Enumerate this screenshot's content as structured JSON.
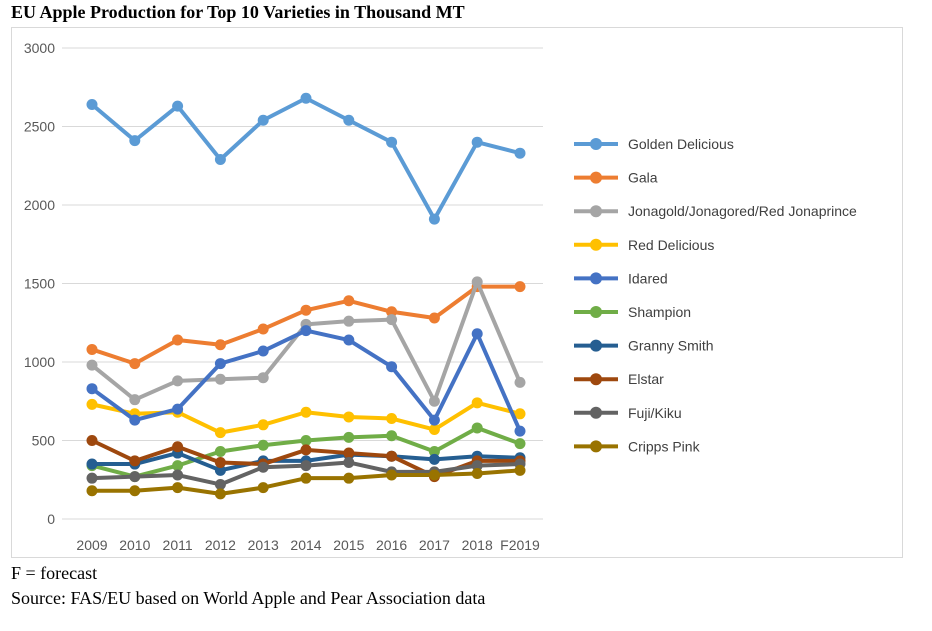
{
  "title": "EU Apple Production for Top 10 Varieties in Thousand MT",
  "notes": {
    "forecast": "F = forecast",
    "source": "Source: FAS/EU based on World Apple and Pear Association data"
  },
  "chart_data": {
    "type": "line",
    "title": "EU Apple Production for Top 10 Varieties in Thousand MT",
    "xlabel": "",
    "ylabel": "",
    "ylim": [
      0,
      3000
    ],
    "yticks": [
      0,
      500,
      1000,
      1500,
      2000,
      2500,
      3000
    ],
    "grid": true,
    "legend": "right",
    "x": [
      "2009",
      "2010",
      "2011",
      "2012",
      "2013",
      "2014",
      "2015",
      "2016",
      "2017",
      "2018",
      "F2019"
    ],
    "series": [
      {
        "name": "Golden Delicious",
        "color": "#5b9bd5",
        "values": [
          2640,
          2410,
          2630,
          2290,
          2540,
          2680,
          2540,
          2400,
          1910,
          2400,
          2330
        ]
      },
      {
        "name": "Gala",
        "color": "#ed7d31",
        "values": [
          1080,
          990,
          1140,
          1110,
          1210,
          1330,
          1390,
          1320,
          1280,
          1480,
          1480
        ]
      },
      {
        "name": "Jonagold/Jonagored/Red Jonaprince",
        "color": "#a5a5a5",
        "values": [
          980,
          760,
          880,
          890,
          900,
          1240,
          1260,
          1270,
          750,
          1510,
          870
        ]
      },
      {
        "name": "Red Delicious",
        "color": "#ffc000",
        "values": [
          730,
          670,
          680,
          550,
          600,
          680,
          650,
          640,
          570,
          740,
          670
        ]
      },
      {
        "name": "Idared",
        "color": "#4472c4",
        "values": [
          830,
          630,
          700,
          990,
          1070,
          1200,
          1140,
          970,
          630,
          1180,
          560
        ]
      },
      {
        "name": "Shampion",
        "color": "#70ad47",
        "values": [
          340,
          270,
          340,
          430,
          470,
          500,
          520,
          530,
          430,
          580,
          480
        ]
      },
      {
        "name": "Granny Smith",
        "color": "#255e91",
        "values": [
          350,
          350,
          420,
          310,
          370,
          370,
          410,
          400,
          380,
          400,
          390
        ]
      },
      {
        "name": "Elstar",
        "color": "#9e480e",
        "values": [
          500,
          370,
          460,
          360,
          350,
          440,
          420,
          400,
          270,
          370,
          370
        ]
      },
      {
        "name": "Fuji/Kiku",
        "color": "#636363",
        "values": [
          260,
          270,
          280,
          220,
          330,
          340,
          360,
          300,
          300,
          340,
          350
        ]
      },
      {
        "name": "Cripps Pink",
        "color": "#997300",
        "values": [
          180,
          180,
          200,
          160,
          200,
          260,
          260,
          280,
          280,
          290,
          310
        ]
      }
    ]
  }
}
